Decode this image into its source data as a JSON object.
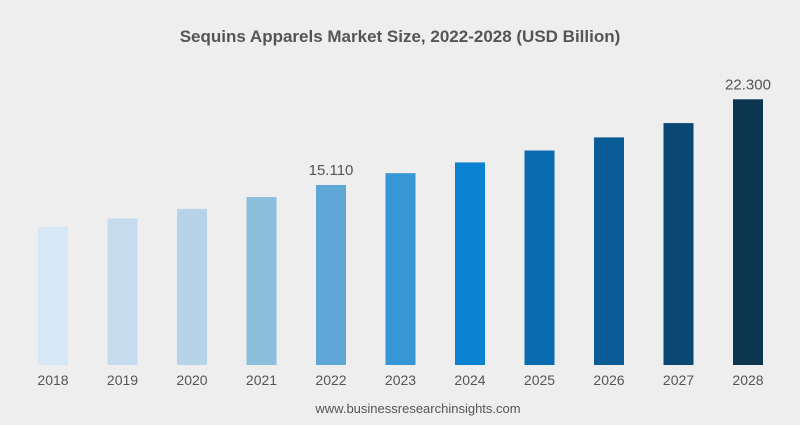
{
  "chart_data": {
    "type": "bar",
    "title": "Sequins Apparels Market Size, 2022-2028 (USD Billion)",
    "categories": [
      "2018",
      "2019",
      "2020",
      "2021",
      "2022",
      "2023",
      "2024",
      "2025",
      "2026",
      "2027",
      "2028"
    ],
    "values": [
      11.6,
      12.3,
      13.1,
      14.1,
      15.11,
      16.1,
      17.0,
      18.0,
      19.1,
      20.3,
      22.3
    ],
    "data_labels": [
      {
        "category": "2022",
        "text": "15.110"
      },
      {
        "category": "2028",
        "text": "22.300"
      }
    ],
    "bar_colors": [
      "#d6e7f5",
      "#c6dcee",
      "#b6d3e8",
      "#8cbfdc",
      "#5ea7d6",
      "#3696d6",
      "#0b82d1",
      "#0a6cb0",
      "#0a5c96",
      "#0a4873",
      "#0c3550"
    ],
    "xlabel": "",
    "ylabel": "",
    "ylim": [
      0,
      23.5
    ],
    "grid": false,
    "legend": "none",
    "source": "www.businessresearchinsights.com"
  }
}
